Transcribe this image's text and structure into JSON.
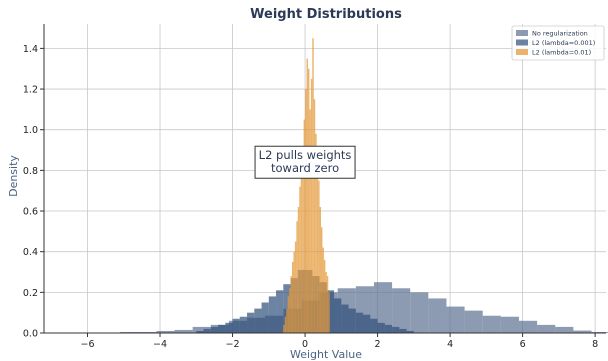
{
  "chart_data": {
    "type": "bar",
    "title": "Weight Distributions",
    "xlabel": "Weight Value",
    "ylabel": "Density",
    "xlim": [
      -7.2,
      8.3
    ],
    "ylim": [
      0,
      1.52
    ],
    "grid": true,
    "legend_position": "top-right",
    "xticks": [
      -6,
      -4,
      -2,
      0,
      2,
      4,
      6,
      8
    ],
    "yticks": [
      0.0,
      0.2,
      0.4,
      0.6,
      0.8,
      1.0,
      1.2,
      1.4
    ],
    "xtick_labels": [
      "−6",
      "−4",
      "−2",
      "0",
      "2",
      "4",
      "6",
      "8"
    ],
    "ytick_labels": [
      "0.0",
      "0.2",
      "0.4",
      "0.6",
      "0.8",
      "1.0",
      "1.2",
      "1.4"
    ],
    "annotation": {
      "lines": [
        "L2 pulls weights",
        "toward zero"
      ],
      "x": 0.0,
      "y": 0.84
    },
    "series": [
      {
        "name": "No regularization",
        "color": "#5b7192",
        "opacity": 0.7,
        "bin_start": -5.6,
        "bin_width": 0.5,
        "values": [
          0.002,
          0.005,
          0.005,
          0.01,
          0.015,
          0.03,
          0.04,
          0.06,
          0.075,
          0.085,
          0.12,
          0.16,
          0.2,
          0.22,
          0.23,
          0.25,
          0.22,
          0.2,
          0.17,
          0.13,
          0.11,
          0.085,
          0.08,
          0.06,
          0.04,
          0.03,
          0.012,
          0.005,
          0.02,
          0.004
        ]
      },
      {
        "name": "L2 (lambda=0.001)",
        "color": "#2f4f7a",
        "opacity": 0.7,
        "bin_start": -3.0,
        "bin_width": 0.2,
        "values": [
          0.01,
          0.02,
          0.03,
          0.04,
          0.05,
          0.07,
          0.08,
          0.1,
          0.12,
          0.15,
          0.18,
          0.21,
          0.24,
          0.27,
          0.31,
          0.31,
          0.28,
          0.25,
          0.21,
          0.17,
          0.14,
          0.12,
          0.1,
          0.09,
          0.07,
          0.05,
          0.04,
          0.03,
          0.02,
          0.01
        ]
      },
      {
        "name": "L2 (lambda=0.01)",
        "color": "#e4993b",
        "opacity": 0.75,
        "bin_start": -0.6,
        "bin_width": 0.04,
        "values": [
          0.04,
          0.08,
          0.12,
          0.18,
          0.22,
          0.28,
          0.35,
          0.4,
          0.45,
          0.55,
          0.62,
          0.72,
          0.8,
          0.92,
          1.05,
          1.2,
          1.35,
          1.3,
          1.1,
          1.25,
          1.45,
          1.15,
          0.98,
          0.85,
          0.75,
          0.62,
          0.52,
          0.42,
          0.36,
          0.3,
          0.28,
          0.2
        ]
      }
    ]
  }
}
